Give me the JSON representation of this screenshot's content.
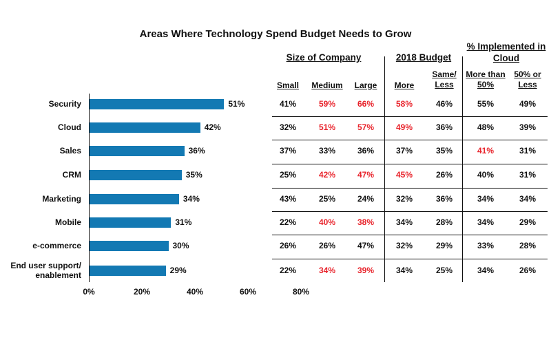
{
  "chart_data": {
    "type": "bar",
    "orientation": "horizontal",
    "title": "Areas Where Technology Spend Budget Needs to Grow",
    "categories": [
      "Security",
      "Cloud",
      "Sales",
      "CRM",
      "Marketing",
      "Mobile",
      "e-commerce",
      "End user support/ enablement"
    ],
    "values": [
      51,
      42,
      36,
      35,
      34,
      31,
      30,
      29
    ],
    "value_labels": [
      "51%",
      "42%",
      "36%",
      "35%",
      "34%",
      "31%",
      "30%",
      "29%"
    ],
    "xlim": [
      0,
      80
    ],
    "x_ticks": [
      "0%",
      "20%",
      "40%",
      "60%",
      "80%"
    ],
    "bar_color": "#1379b3",
    "highlight_color": "#e8232b",
    "table": {
      "groups": [
        {
          "label": "Size of Company",
          "columns": [
            "Small",
            "Medium",
            "Large"
          ]
        },
        {
          "label": "2018 Budget",
          "columns": [
            "More",
            "Same/ Less"
          ]
        },
        {
          "label": "% Implemented in Cloud",
          "columns": [
            "More than 50%",
            "50% or Less"
          ]
        }
      ],
      "rows": [
        {
          "category": "Security",
          "values": [
            "41%",
            "59%",
            "66%",
            "58%",
            "46%",
            "55%",
            "49%"
          ],
          "highlighted": [
            false,
            true,
            true,
            true,
            false,
            false,
            false
          ]
        },
        {
          "category": "Cloud",
          "values": [
            "32%",
            "51%",
            "57%",
            "49%",
            "36%",
            "48%",
            "39%"
          ],
          "highlighted": [
            false,
            true,
            true,
            true,
            false,
            false,
            false
          ]
        },
        {
          "category": "Sales",
          "values": [
            "37%",
            "33%",
            "36%",
            "37%",
            "35%",
            "41%",
            "31%"
          ],
          "highlighted": [
            false,
            false,
            false,
            false,
            false,
            true,
            false
          ]
        },
        {
          "category": "CRM",
          "values": [
            "25%",
            "42%",
            "47%",
            "45%",
            "26%",
            "40%",
            "31%"
          ],
          "highlighted": [
            false,
            true,
            true,
            true,
            false,
            false,
            false
          ]
        },
        {
          "category": "Marketing",
          "values": [
            "43%",
            "25%",
            "24%",
            "32%",
            "36%",
            "34%",
            "34%"
          ],
          "highlighted": [
            false,
            false,
            false,
            false,
            false,
            false,
            false
          ]
        },
        {
          "category": "Mobile",
          "values": [
            "22%",
            "40%",
            "38%",
            "34%",
            "28%",
            "34%",
            "29%"
          ],
          "highlighted": [
            false,
            true,
            true,
            false,
            false,
            false,
            false
          ]
        },
        {
          "category": "e-commerce",
          "values": [
            "26%",
            "26%",
            "47%",
            "32%",
            "29%",
            "33%",
            "28%"
          ],
          "highlighted": [
            false,
            false,
            false,
            false,
            false,
            false,
            false
          ]
        },
        {
          "category": "End user support/ enablement",
          "values": [
            "22%",
            "34%",
            "39%",
            "34%",
            "25%",
            "34%",
            "26%"
          ],
          "highlighted": [
            false,
            true,
            true,
            false,
            false,
            false,
            false
          ]
        }
      ]
    }
  }
}
